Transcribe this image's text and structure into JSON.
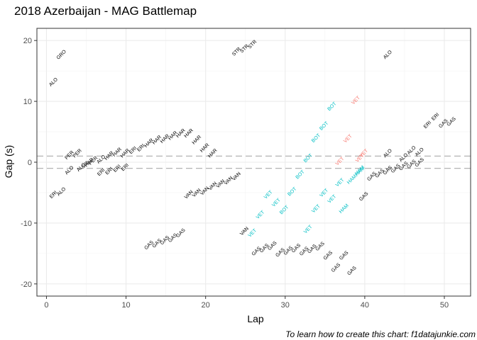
{
  "chart_data": {
    "type": "scatter",
    "title": "2018 Azerbaijan - MAG Battlemap",
    "xlabel": "Lap",
    "ylabel": "Gap (s)",
    "caption": "To learn how to create this chart: f1datajunkie.com",
    "xlim": [
      -1.2,
      53.3
    ],
    "ylim": [
      -22,
      22
    ],
    "x_ticks": [
      0,
      10,
      20,
      30,
      40,
      50
    ],
    "y_ticks": [
      -20,
      -10,
      0,
      10,
      20
    ],
    "grid": true,
    "legend": "none",
    "reference_lines": [
      1,
      -1
    ],
    "colors": {
      "black": "#000000",
      "cyan": "#00bfc4",
      "red": "#f8766d"
    },
    "labels": [
      {
        "x": 2,
        "y": 17.5,
        "t": "GRO",
        "c": "black"
      },
      {
        "x": 1,
        "y": 13,
        "t": "ALO",
        "c": "black"
      },
      {
        "x": 1,
        "y": -5.5,
        "t": "ERI",
        "c": "black"
      },
      {
        "x": 2,
        "y": -5,
        "t": "ALO",
        "c": "black"
      },
      {
        "x": 3,
        "y": 1,
        "t": "PER",
        "c": "black"
      },
      {
        "x": 4,
        "y": 1.3,
        "t": "PER",
        "c": "black"
      },
      {
        "x": 3,
        "y": -1.5,
        "t": "ALO",
        "c": "black"
      },
      {
        "x": 4.5,
        "y": -1,
        "t": "ALO",
        "c": "black"
      },
      {
        "x": 5,
        "y": -0.6,
        "t": "SIR",
        "c": "black"
      },
      {
        "x": 5.5,
        "y": -0.2,
        "t": "HAR",
        "c": "black"
      },
      {
        "x": 6,
        "y": 0.1,
        "t": "PER",
        "c": "black"
      },
      {
        "x": 7,
        "y": 0.3,
        "t": "ALO",
        "c": "black"
      },
      {
        "x": 8,
        "y": 0.9,
        "t": "HAR",
        "c": "black"
      },
      {
        "x": 7,
        "y": -1.8,
        "t": "ERI",
        "c": "black"
      },
      {
        "x": 8,
        "y": -1.6,
        "t": "ERI",
        "c": "black"
      },
      {
        "x": 9,
        "y": 1.5,
        "t": "HAR",
        "c": "black"
      },
      {
        "x": 10,
        "y": 1.3,
        "t": "HAR",
        "c": "black"
      },
      {
        "x": 9,
        "y": -1.2,
        "t": "ERI",
        "c": "black"
      },
      {
        "x": 10,
        "y": -1,
        "t": "ERI",
        "c": "black"
      },
      {
        "x": 11,
        "y": 1.8,
        "t": "ERI",
        "c": "black"
      },
      {
        "x": 12,
        "y": 2.2,
        "t": "ERI",
        "c": "black"
      },
      {
        "x": 13,
        "y": 3,
        "t": "HAR",
        "c": "black"
      },
      {
        "x": 14,
        "y": 3.5,
        "t": "HAR",
        "c": "black"
      },
      {
        "x": 15,
        "y": 3.7,
        "t": "HAR",
        "c": "black"
      },
      {
        "x": 16,
        "y": 4.2,
        "t": "HAR",
        "c": "black"
      },
      {
        "x": 17,
        "y": 4.6,
        "t": "HAR",
        "c": "black"
      },
      {
        "x": 18,
        "y": 4.6,
        "t": "HAR",
        "c": "black"
      },
      {
        "x": 19,
        "y": 3.5,
        "t": "HAR",
        "c": "black"
      },
      {
        "x": 20,
        "y": 2.2,
        "t": "HAR",
        "c": "black"
      },
      {
        "x": 21,
        "y": 1.3,
        "t": "HAR",
        "c": "black"
      },
      {
        "x": 18,
        "y": -5.5,
        "t": "VAN",
        "c": "black"
      },
      {
        "x": 19,
        "y": -5.2,
        "t": "VAN",
        "c": "black"
      },
      {
        "x": 20,
        "y": -4.9,
        "t": "VAN",
        "c": "black"
      },
      {
        "x": 21,
        "y": -4.1,
        "t": "VAN",
        "c": "black"
      },
      {
        "x": 22,
        "y": -3.7,
        "t": "VAN",
        "c": "black"
      },
      {
        "x": 23,
        "y": -3.2,
        "t": "VAN",
        "c": "black"
      },
      {
        "x": 24,
        "y": -2.5,
        "t": "VAN",
        "c": "black"
      },
      {
        "x": 25,
        "y": -11.5,
        "t": "VAN",
        "c": "black"
      },
      {
        "x": 24,
        "y": 18,
        "t": "STR",
        "c": "black"
      },
      {
        "x": 25,
        "y": 18.5,
        "t": "STR",
        "c": "black"
      },
      {
        "x": 26,
        "y": 19.2,
        "t": "STR",
        "c": "black"
      },
      {
        "x": 13,
        "y": -13.8,
        "t": "GAS",
        "c": "black"
      },
      {
        "x": 14,
        "y": -13.5,
        "t": "GAS",
        "c": "black"
      },
      {
        "x": 15,
        "y": -13,
        "t": "GAS",
        "c": "black"
      },
      {
        "x": 16,
        "y": -12.6,
        "t": "GAS",
        "c": "black"
      },
      {
        "x": 17,
        "y": -11.8,
        "t": "GAS",
        "c": "black"
      },
      {
        "x": 26,
        "y": -11.8,
        "t": "VET",
        "c": "cyan"
      },
      {
        "x": 26.5,
        "y": -14.8,
        "t": "GAS",
        "c": "black"
      },
      {
        "x": 27.5,
        "y": -14.3,
        "t": "GAS",
        "c": "black"
      },
      {
        "x": 28.5,
        "y": -13.9,
        "t": "GAS",
        "c": "black"
      },
      {
        "x": 29.5,
        "y": -15,
        "t": "GAS",
        "c": "black"
      },
      {
        "x": 30.5,
        "y": -14.7,
        "t": "GAS",
        "c": "black"
      },
      {
        "x": 31.5,
        "y": -14.3,
        "t": "GAS",
        "c": "black"
      },
      {
        "x": 32.5,
        "y": -14.8,
        "t": "GAS",
        "c": "black"
      },
      {
        "x": 33.5,
        "y": -14.4,
        "t": "GAS",
        "c": "black"
      },
      {
        "x": 34.5,
        "y": -14,
        "t": "GAS",
        "c": "black"
      },
      {
        "x": 35.5,
        "y": -15.5,
        "t": "GAS",
        "c": "black"
      },
      {
        "x": 36.5,
        "y": -17.5,
        "t": "GAS",
        "c": "black"
      },
      {
        "x": 37.5,
        "y": -15.5,
        "t": "GAS",
        "c": "black"
      },
      {
        "x": 38.5,
        "y": -18,
        "t": "GAS",
        "c": "black"
      },
      {
        "x": 40,
        "y": -5.8,
        "t": "GAS",
        "c": "black"
      },
      {
        "x": 27,
        "y": -8.8,
        "t": "VET",
        "c": "cyan"
      },
      {
        "x": 28,
        "y": -5.5,
        "t": "VET",
        "c": "cyan"
      },
      {
        "x": 29,
        "y": -6.8,
        "t": "VET",
        "c": "cyan"
      },
      {
        "x": 30,
        "y": -8,
        "t": "BOT",
        "c": "cyan"
      },
      {
        "x": 31,
        "y": -5,
        "t": "BOT",
        "c": "cyan"
      },
      {
        "x": 32,
        "y": -2.2,
        "t": "BOT",
        "c": "cyan"
      },
      {
        "x": 33,
        "y": 0.5,
        "t": "BOT",
        "c": "cyan"
      },
      {
        "x": 34,
        "y": 3.8,
        "t": "BOT",
        "c": "cyan"
      },
      {
        "x": 35,
        "y": 5.8,
        "t": "BOT",
        "c": "cyan"
      },
      {
        "x": 36,
        "y": 9,
        "t": "BOT",
        "c": "cyan"
      },
      {
        "x": 33,
        "y": -11.2,
        "t": "VET",
        "c": "cyan"
      },
      {
        "x": 34,
        "y": -7.8,
        "t": "VET",
        "c": "cyan"
      },
      {
        "x": 35,
        "y": -5.2,
        "t": "VET",
        "c": "cyan"
      },
      {
        "x": 36,
        "y": -6.2,
        "t": "VET",
        "c": "cyan"
      },
      {
        "x": 37,
        "y": -3.5,
        "t": "VET",
        "c": "cyan"
      },
      {
        "x": 37.5,
        "y": -7.8,
        "t": "HAM",
        "c": "cyan"
      },
      {
        "x": 38.5,
        "y": -3,
        "t": "HAM",
        "c": "cyan"
      },
      {
        "x": 39.5,
        "y": -1.5,
        "t": "HAM",
        "c": "cyan"
      },
      {
        "x": 39.5,
        "y": -1.7,
        "t": "HAM",
        "c": "cyan"
      },
      {
        "x": 37,
        "y": 0,
        "t": "VET",
        "c": "red"
      },
      {
        "x": 39,
        "y": 10,
        "t": "VET",
        "c": "red"
      },
      {
        "x": 38,
        "y": 3.7,
        "t": "VET",
        "c": "red"
      },
      {
        "x": 39.5,
        "y": 0.5,
        "t": "VET",
        "c": "red"
      },
      {
        "x": 40,
        "y": 1.3,
        "t": "VET",
        "c": "red"
      },
      {
        "x": 41,
        "y": -2.5,
        "t": "GAS",
        "c": "black"
      },
      {
        "x": 42,
        "y": -2,
        "t": "GAS",
        "c": "black"
      },
      {
        "x": 43,
        "y": -1.5,
        "t": "GAS",
        "c": "black"
      },
      {
        "x": 44,
        "y": -1.2,
        "t": "GAS",
        "c": "black"
      },
      {
        "x": 45,
        "y": -0.8,
        "t": "GAS",
        "c": "black"
      },
      {
        "x": 46,
        "y": -0.5,
        "t": "GAS",
        "c": "black"
      },
      {
        "x": 47,
        "y": -0.2,
        "t": "GAS",
        "c": "black"
      },
      {
        "x": 43,
        "y": 1.3,
        "t": "ALO",
        "c": "black"
      },
      {
        "x": 45,
        "y": 0.6,
        "t": "ALO",
        "c": "black"
      },
      {
        "x": 46,
        "y": 1.8,
        "t": "ALO",
        "c": "black"
      },
      {
        "x": 47,
        "y": 1.5,
        "t": "ALO",
        "c": "black"
      },
      {
        "x": 43,
        "y": 17.5,
        "t": "ALO",
        "c": "black"
      },
      {
        "x": 48,
        "y": 6,
        "t": "ERI",
        "c": "black"
      },
      {
        "x": 49,
        "y": 7.3,
        "t": "ERI",
        "c": "black"
      },
      {
        "x": 50,
        "y": 6.2,
        "t": "GAS",
        "c": "black"
      },
      {
        "x": 51,
        "y": 6.5,
        "t": "GAS",
        "c": "black"
      }
    ]
  }
}
